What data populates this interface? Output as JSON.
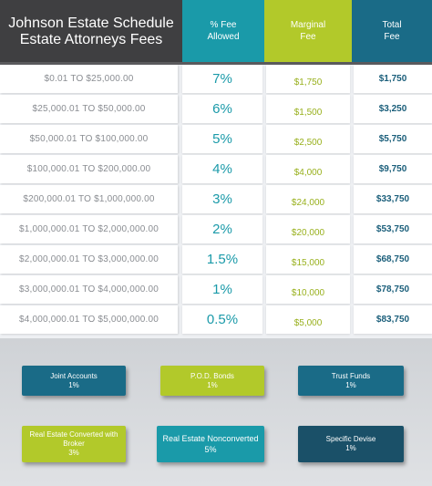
{
  "header": {
    "title_line1": "Johnson Estate Schedule",
    "title_line2": "Estate Attorneys Fees",
    "fee_line1": "% Fee",
    "fee_line2": "Allowed",
    "marginal_line1": "Marginal",
    "marginal_line2": "Fee",
    "total_line1": "Total",
    "total_line2": "Fee"
  },
  "rows": [
    {
      "range": "$0.01 TO $25,000.00",
      "fee": "7%",
      "marginal": "$1,750",
      "total": "$1,750"
    },
    {
      "range": "$25,000.01 TO $50,000.00",
      "fee": "6%",
      "marginal": "$1,500",
      "total": "$3,250"
    },
    {
      "range": "$50,000.01 TO $100,000.00",
      "fee": "5%",
      "marginal": "$2,500",
      "total": "$5,750"
    },
    {
      "range": "$100,000.01 TO $200,000.00",
      "fee": "4%",
      "marginal": "$4,000",
      "total": "$9,750"
    },
    {
      "range": "$200,000.01 TO $1,000,000.00",
      "fee": "3%",
      "marginal": "$24,000",
      "total": "$33,750"
    },
    {
      "range": "$1,000,000.01 TO $2,000,000.00",
      "fee": "2%",
      "marginal": "$20,000",
      "total": "$53,750"
    },
    {
      "range": "$2,000,000.01 TO $3,000,000.00",
      "fee": "1.5%",
      "marginal": "$15,000",
      "total": "$68,750"
    },
    {
      "range": "$3,000,000.01 TO $4,000,000.00",
      "fee": "1%",
      "marginal": "$10,000",
      "total": "$78,750"
    },
    {
      "range": "$4,000,000.01 TO $5,000,000.00",
      "fee": "0.5%",
      "marginal": "$5,000",
      "total": "$83,750"
    }
  ],
  "categories": {
    "joint": {
      "label": "Joint Accounts",
      "value": "1%"
    },
    "pod": {
      "label": "P.O.D. Bonds",
      "value": "1%"
    },
    "trust": {
      "label": "Trust Funds",
      "value": "1%"
    },
    "realconv": {
      "label_line1": "Real Estate Converted with",
      "label_line2": "Broker",
      "value": "3%"
    },
    "realnon": {
      "label": "Real Estate Nonconverted",
      "value": "5%"
    },
    "devise": {
      "label": "Specific Devise",
      "value": "1%"
    }
  },
  "colors": {
    "dark_header": "#3f3f41",
    "teal": "#1a9aa9",
    "lime": "#b2c92a",
    "navy_teal": "#1a6b87",
    "dark_teal": "#1a5068"
  }
}
